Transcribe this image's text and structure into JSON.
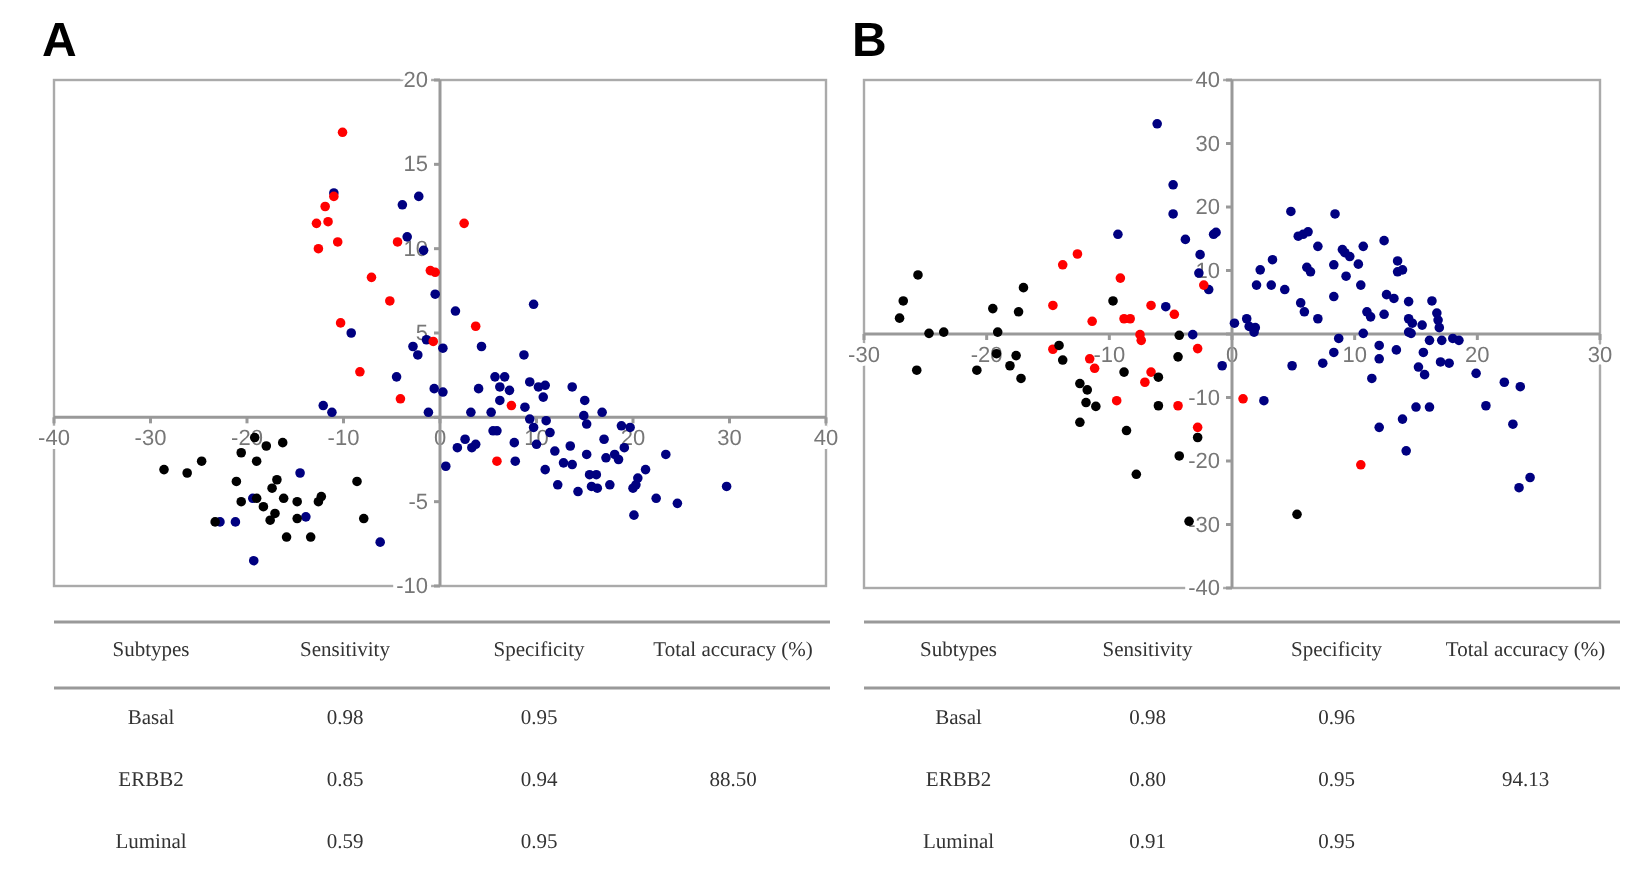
{
  "chart_data": [
    {
      "type": "scatter",
      "title": "A",
      "marker": "circle",
      "grid": false,
      "xlim": [
        -40,
        40
      ],
      "ylim": [
        -10,
        20
      ],
      "xticks": [
        -40,
        -30,
        -20,
        -10,
        0,
        10,
        20,
        30,
        40
      ],
      "yticks": [
        -10,
        -5,
        {
          "value": 0,
          "label": null
        },
        5,
        10,
        15,
        20
      ],
      "series": [
        {
          "color": "#000080",
          "x": [
            -11.0,
            -2.2,
            -3.9,
            -3.4,
            -1.7,
            -0.5,
            1.6,
            9.7,
            -9.2,
            -2.8,
            -2.3,
            -1.4,
            0.3,
            4.3,
            -4.5,
            -0.6,
            0.3,
            -1.2,
            -12.1,
            -11.2,
            0.6,
            1.8,
            2.6,
            3.3,
            3.7,
            4.0,
            3.2,
            5.3,
            5.7,
            6.2,
            6.7,
            5.9,
            5.5,
            6.2,
            7.2,
            7.7,
            7.8,
            8.7,
            8.8,
            9.3,
            9.3,
            9.7,
            10.0,
            10.2,
            10.7,
            11.0,
            10.9,
            11.4,
            11.9,
            10.9,
            12.2,
            12.8,
            13.5,
            13.7,
            13.7,
            14.3,
            14.9,
            15.0,
            15.2,
            15.2,
            15.5,
            15.7,
            16.2,
            16.3,
            16.8,
            17.0,
            17.2,
            17.6,
            18.1,
            18.5,
            18.8,
            19.1,
            19.7,
            20.0,
            20.1,
            20.5,
            21.3,
            22.4,
            23.4,
            24.6,
            29.7,
            20.3,
            -19.3,
            -21.2,
            -22.8,
            -14.5,
            -13.9,
            -6.2,
            -19.4
          ],
          "values": [
            13.3,
            13.1,
            12.6,
            10.7,
            9.9,
            7.3,
            6.3,
            6.7,
            5.0,
            4.2,
            3.7,
            4.6,
            4.1,
            4.2,
            2.4,
            1.7,
            1.5,
            0.3,
            0.7,
            0.3,
            -2.9,
            -1.8,
            -1.3,
            -1.8,
            -1.6,
            1.7,
            0.3,
            0.3,
            2.4,
            1.8,
            2.4,
            -0.8,
            -0.8,
            1.0,
            1.6,
            -1.5,
            -2.6,
            3.7,
            0.6,
            2.1,
            -0.1,
            -0.6,
            -1.6,
            1.8,
            1.2,
            -0.2,
            1.9,
            -0.9,
            -2.0,
            -3.1,
            -4.0,
            -2.7,
            -1.7,
            1.8,
            -2.8,
            -4.4,
            0.1,
            1.0,
            -0.4,
            -2.2,
            -3.4,
            -4.1,
            -3.4,
            -4.2,
            0.3,
            -1.3,
            -2.4,
            -4.0,
            -2.2,
            -2.5,
            -0.5,
            -1.8,
            -0.6,
            -4.2,
            -5.8,
            -3.6,
            -3.1,
            -4.8,
            -2.2,
            -5.1,
            -4.1,
            -4.0,
            -8.5,
            -6.2,
            -6.2,
            -3.3,
            -5.9,
            -7.4,
            -4.8
          ]
        },
        {
          "color": "#ff0000",
          "x": [
            -10.1,
            -11.0,
            -11.9,
            -12.8,
            -11.6,
            -12.6,
            -10.6,
            -7.1,
            -5.2,
            -4.4,
            -1.0,
            -0.5,
            2.5,
            -10.3,
            3.7,
            -0.7,
            -8.3,
            -4.1,
            7.4,
            5.9
          ],
          "values": [
            16.9,
            13.1,
            12.5,
            11.5,
            11.6,
            10.0,
            10.4,
            8.3,
            6.9,
            10.4,
            8.7,
            8.6,
            11.5,
            5.6,
            5.4,
            4.5,
            2.7,
            1.1,
            0.7,
            -2.6
          ]
        },
        {
          "color": "#000000",
          "x": [
            -28.6,
            -26.2,
            -24.7,
            -23.3,
            -20.6,
            -19.2,
            -18.0,
            -16.3,
            -21.1,
            -20.6,
            -19.0,
            -18.3,
            -19.0,
            -17.4,
            -16.9,
            -16.2,
            -17.6,
            -17.1,
            -15.9,
            -14.8,
            -14.8,
            -13.4,
            -12.6,
            -12.3,
            -8.6,
            -7.9
          ],
          "values": [
            -3.1,
            -3.3,
            -2.6,
            -6.2,
            -2.1,
            -1.2,
            -1.7,
            -1.5,
            -3.8,
            -5.0,
            -4.8,
            -5.3,
            -2.6,
            -4.2,
            -3.7,
            -4.8,
            -6.1,
            -5.7,
            -7.1,
            -5.0,
            -6.0,
            -7.1,
            -5.0,
            -4.7,
            -3.8,
            -6.0
          ]
        }
      ]
    },
    {
      "type": "other",
      "categories": [
        "Subtypes",
        "Sensitivity",
        "Specificity",
        "Total accuracy (%)"
      ],
      "y_categories": [
        "Basal",
        "ERBB2",
        "Luminal"
      ],
      "cell_labels": [
        [
          "0.98",
          "0.95",
          null
        ],
        [
          "0.85",
          "0.94",
          "88.50"
        ],
        [
          "0.59",
          "0.95",
          null
        ]
      ]
    },
    {
      "type": "scatter",
      "title": "B",
      "marker": "circle",
      "grid": false,
      "xlim": [
        -30,
        30
      ],
      "ylim": [
        -40,
        40
      ],
      "xticks": [
        -30,
        -20,
        -10,
        0,
        10,
        20,
        30
      ],
      "yticks": [
        -40,
        -30,
        -20,
        -10,
        {
          "value": 0,
          "label": null
        },
        10,
        20,
        30,
        40
      ],
      "series": [
        {
          "color": "#000080",
          "x": [
            -6.1,
            -4.8,
            -4.8,
            -3.8,
            -9.3,
            -2.6,
            -2.7,
            -1.9,
            -1.5,
            -1.3,
            -5.4,
            -3.2,
            -0.8,
            0.2,
            1.2,
            1.4,
            1.8,
            1.9,
            2.3,
            2.0,
            3.3,
            3.2,
            2.6,
            4.3,
            4.8,
            4.9,
            5.4,
            5.8,
            6.2,
            5.6,
            5.9,
            6.1,
            6.4,
            7.0,
            7.0,
            7.4,
            8.4,
            8.3,
            8.3,
            8.3,
            8.7,
            9.0,
            9.2,
            9.6,
            9.3,
            10.3,
            10.5,
            10.7,
            10.7,
            11.0,
            11.3,
            11.4,
            12.0,
            12.0,
            12.0,
            12.4,
            12.6,
            12.4,
            13.2,
            13.4,
            13.5,
            13.9,
            13.5,
            13.9,
            14.2,
            14.4,
            14.4,
            14.4,
            14.7,
            14.6,
            15.0,
            15.2,
            15.5,
            15.6,
            15.7,
            16.1,
            16.1,
            16.3,
            16.7,
            16.8,
            16.9,
            17.0,
            17.1,
            17.7,
            18.0,
            18.5,
            19.9,
            20.7,
            22.2,
            22.9,
            23.4,
            23.5,
            24.3
          ],
          "values": [
            33.1,
            23.5,
            18.9,
            14.9,
            15.7,
            12.5,
            9.6,
            7.0,
            15.7,
            16.0,
            4.3,
            -0.1,
            -5.0,
            1.7,
            2.4,
            1.2,
            0.3,
            1.0,
            10.1,
            7.7,
            11.7,
            7.7,
            -10.5,
            7.0,
            19.3,
            -5.0,
            15.4,
            15.7,
            16.1,
            4.9,
            3.5,
            10.5,
            9.8,
            13.8,
            2.4,
            -4.6,
            18.9,
            5.9,
            10.9,
            -2.9,
            -0.7,
            13.3,
            12.8,
            12.2,
            9.1,
            11.0,
            7.7,
            13.8,
            0.1,
            3.5,
            2.7,
            -7.0,
            -1.8,
            -3.9,
            -14.7,
            14.7,
            6.2,
            3.1,
            5.6,
            -2.5,
            11.5,
            10.1,
            9.8,
            -13.4,
            -18.4,
            5.1,
            2.4,
            0.3,
            1.7,
            0.1,
            -11.5,
            -5.2,
            1.4,
            -2.9,
            -6.4,
            -11.5,
            -1.0,
            5.2,
            3.3,
            2.2,
            1.0,
            -4.4,
            -1.0,
            -4.6,
            -0.7,
            -1.0,
            -6.2,
            -11.3,
            -7.6,
            -14.2,
            -24.2,
            -8.3,
            -22.6
          ]
        },
        {
          "color": "#ff0000",
          "x": [
            -13.8,
            -12.6,
            -9.1,
            -14.6,
            -11.4,
            -8.8,
            -8.3,
            -7.5,
            -7.4,
            -6.6,
            -4.7,
            -2.3,
            -14.6,
            -11.6,
            -11.2,
            -6.6,
            -7.1,
            -9.4,
            -4.4,
            -2.8,
            -2.8,
            0.9,
            10.5
          ],
          "values": [
            10.9,
            12.6,
            8.8,
            4.5,
            2.0,
            2.4,
            2.4,
            -0.1,
            -1.0,
            4.5,
            3.1,
            7.7,
            -2.4,
            -3.9,
            -5.4,
            -6.0,
            -7.6,
            -10.5,
            -11.3,
            -2.3,
            -14.7,
            -10.2,
            -20.6
          ]
        },
        {
          "color": "#000000",
          "x": [
            -27.1,
            -26.8,
            -25.6,
            -25.7,
            -24.7,
            -23.5,
            -20.8,
            -19.5,
            -19.1,
            -19.2,
            -18.1,
            -17.6,
            -17.4,
            -17.2,
            -17.0,
            -14.1,
            -13.8,
            -12.4,
            -12.4,
            -11.8,
            -11.9,
            -11.1,
            -9.7,
            -8.8,
            -8.6,
            -7.8,
            -6.0,
            -6.0,
            -4.3,
            -4.4,
            -4.3,
            -3.5,
            -2.8,
            5.3
          ],
          "values": [
            2.5,
            5.2,
            9.3,
            -5.7,
            0.1,
            0.3,
            -5.7,
            4.0,
            0.3,
            -3.1,
            -5.0,
            -3.4,
            3.5,
            -7.0,
            7.3,
            -1.8,
            -4.1,
            -13.9,
            -7.8,
            -8.8,
            -10.8,
            -11.4,
            5.2,
            -6.0,
            -15.2,
            -22.1,
            -6.8,
            -11.3,
            -0.2,
            -3.6,
            -19.2,
            -29.5,
            -16.3,
            -28.4
          ]
        }
      ]
    },
    {
      "type": "other",
      "categories": [
        "Subtypes",
        "Sensitivity",
        "Specificity",
        "Total accuracy (%)"
      ],
      "y_categories": [
        "Basal",
        "ERBB2",
        "Luminal"
      ],
      "cell_labels": [
        [
          "0.98",
          "0.96",
          null
        ],
        [
          "0.80",
          "0.95",
          "94.13"
        ],
        [
          "0.91",
          "0.95",
          null
        ]
      ]
    }
  ]
}
